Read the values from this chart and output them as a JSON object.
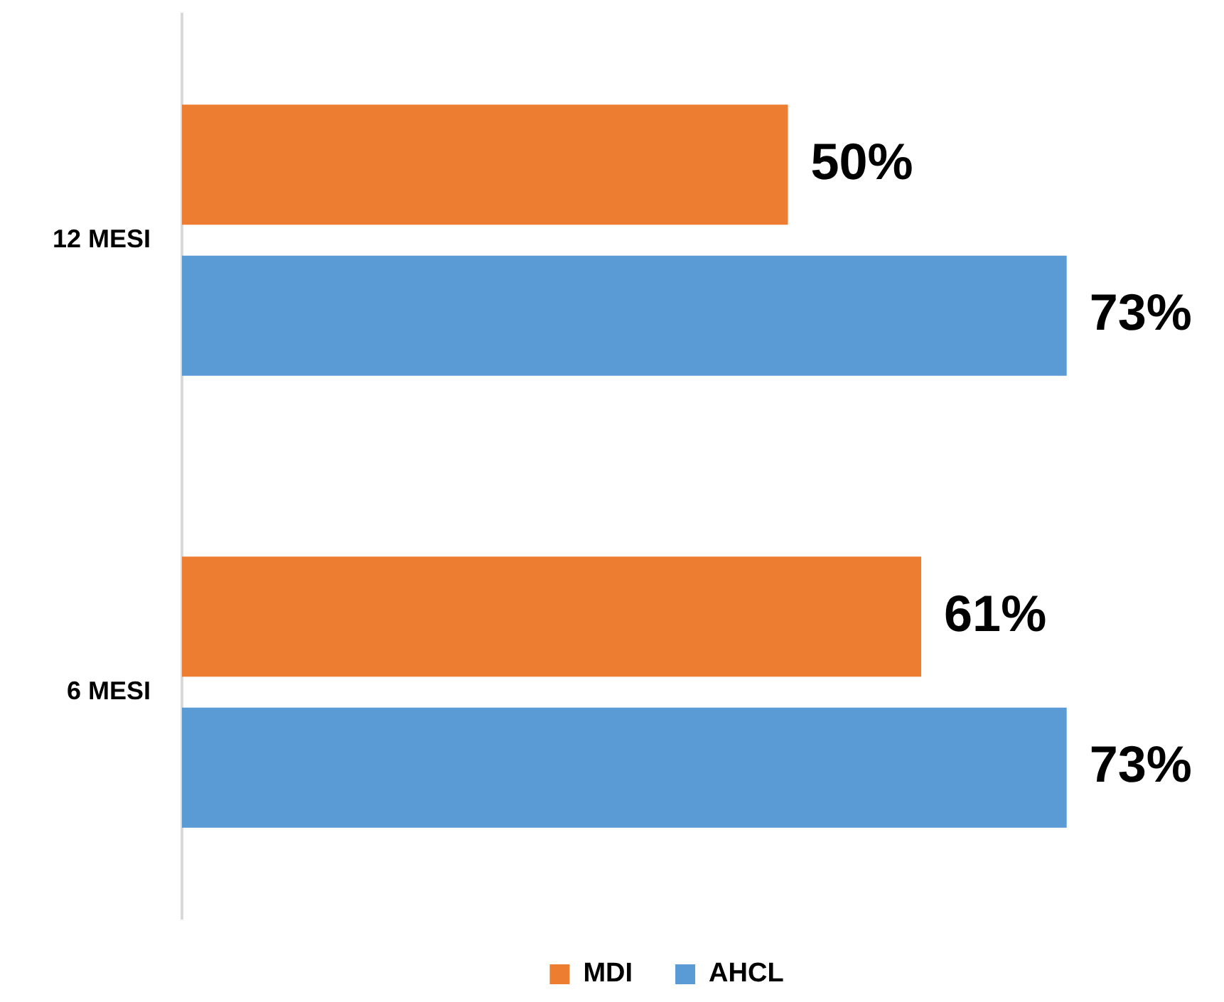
{
  "chart_data": {
    "type": "bar",
    "orientation": "horizontal",
    "categories": [
      "12 MESI",
      "6 MESI"
    ],
    "series": [
      {
        "name": "MDI",
        "color": "#ed7d31",
        "values": [
          50,
          61
        ],
        "value_labels": [
          "50%",
          "61%"
        ]
      },
      {
        "name": "AHCL",
        "color": "#5b9bd5",
        "values": [
          73,
          73
        ],
        "value_labels": [
          "73%",
          "73%"
        ]
      }
    ],
    "legend": "bottom",
    "tick_labels": "y"
  }
}
